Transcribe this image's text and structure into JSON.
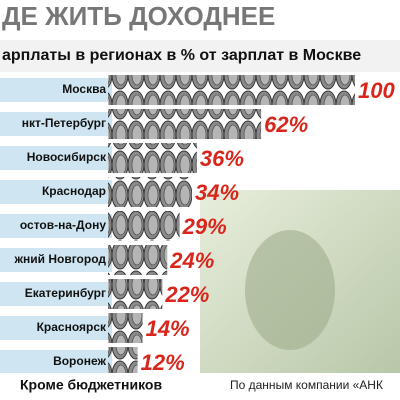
{
  "chart_data": {
    "type": "bar",
    "title": "ДЕ ЖИТЬ ДОХОДНЕЕ",
    "subtitle": "арплаты в регионах в % от зарплат в Москве",
    "categories": [
      "Москва",
      "нкт-Петербург",
      "Новосибирск",
      "Краснодар",
      "остов-на-Дону",
      "жний Новгород",
      "Екатеринбург",
      "Красноярск",
      "Воронеж"
    ],
    "values": [
      100,
      62,
      36,
      34,
      29,
      24,
      22,
      14,
      12
    ],
    "value_labels": [
      "100",
      "62%",
      "36%",
      "34%",
      "29%",
      "24%",
      "22%",
      "14%",
      "12%"
    ],
    "note": "Кроме бюджетников",
    "source": "По данным компании «АНК"
  }
}
